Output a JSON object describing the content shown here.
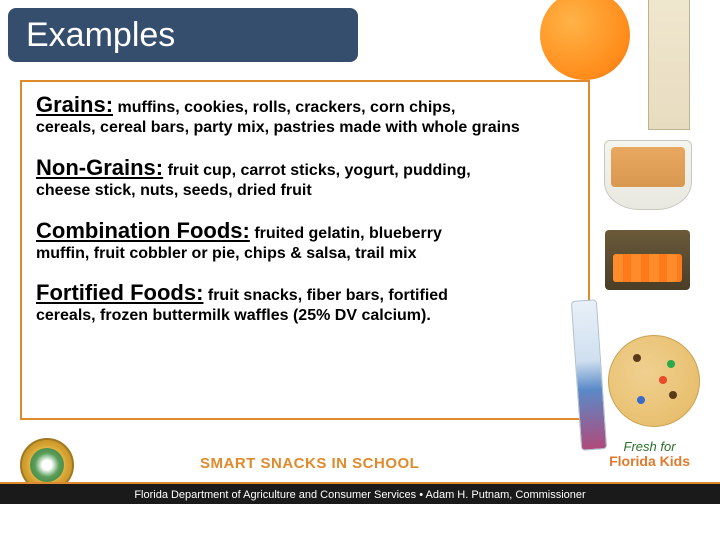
{
  "title": "Examples",
  "categories": [
    {
      "heading": "Grains:",
      "lead": " muffins, cookies, rolls, crackers, corn chips,",
      "cont": "cereals, cereal bars, party mix, pastries made with whole grains"
    },
    {
      "heading": "Non-Grains:",
      "lead": " fruit cup, carrot sticks, yogurt, pudding,",
      "cont": "cheese stick, nuts, seeds, dried fruit"
    },
    {
      "heading": "Combination Foods:",
      "lead": " fruited gelatin, blueberry",
      "cont": "muffin, fruit cobbler or pie, chips & salsa, trail mix"
    },
    {
      "heading": "Fortified Foods:",
      "lead": " fruit snacks, fiber bars, fortified",
      "cont": "cereals, frozen buttermilk waffles (25% DV calcium)."
    }
  ],
  "tagline": "SMART SNACKS IN SCHOOL",
  "footer": "Florida Department of Agriculture and Consumer Services   •   Adam H. Putnam, Commissioner",
  "fresh_logo_top": "Fresh for",
  "fresh_logo_bottom": "Florida Kids",
  "colors": {
    "banner_bg": "#364e6e",
    "border_orange": "#e08a2e",
    "tag_orange": "#e08a2e",
    "footer_bg": "#1a1a1a"
  }
}
